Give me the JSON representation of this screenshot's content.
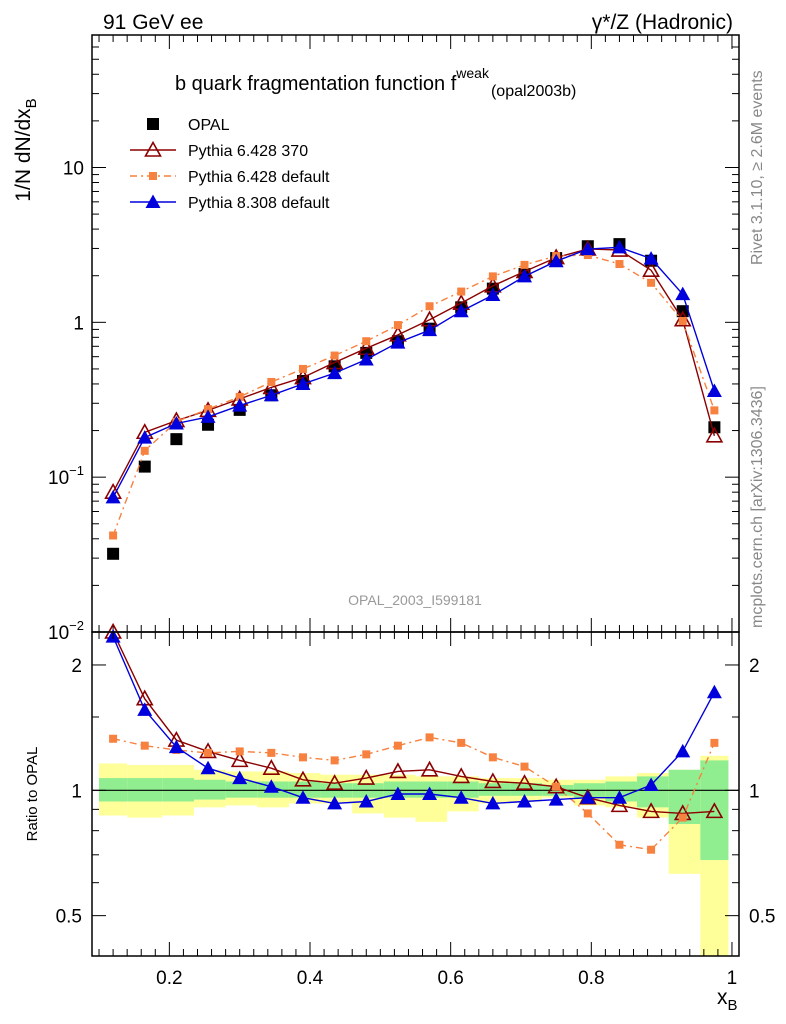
{
  "header": {
    "left": "91 GeV ee",
    "right": "γ*/Z (Hadronic)"
  },
  "side_labels": {
    "top": "Rivet 3.1.10, ≥ 2.6M events",
    "bottom": "mcplots.cern.ch [arXiv:1306.3436]"
  },
  "chart_data": [
    {
      "type": "line",
      "title_main": "b quark fragmentation function f",
      "title_sup": "weak",
      "title_sub": "(opal2003b)",
      "ylabel": "1/N dN/dx",
      "ylabel_sub": "B",
      "watermark": "OPAL_2003_I599181",
      "yscale": "log",
      "ylim": [
        0.01,
        60
      ],
      "xlim": [
        0.09,
        1.01
      ],
      "yticks": [
        {
          "v": 0.01,
          "base": "10",
          "exp": "−2"
        },
        {
          "v": 0.1,
          "base": "10",
          "exp": "−1"
        },
        {
          "v": 1,
          "base": "1",
          "exp": ""
        },
        {
          "v": 10,
          "base": "10",
          "exp": ""
        }
      ],
      "x": [
        0.12,
        0.165,
        0.21,
        0.255,
        0.3,
        0.345,
        0.39,
        0.435,
        0.48,
        0.525,
        0.57,
        0.615,
        0.66,
        0.705,
        0.75,
        0.795,
        0.84,
        0.885,
        0.93,
        0.975
      ],
      "legend": [
        {
          "name": "OPAL",
          "marker": "square",
          "color": "#000000",
          "line": "none"
        },
        {
          "name": "Pythia 6.428 370",
          "marker": "triangle-open",
          "color": "#8b0000",
          "line": "solid"
        },
        {
          "name": "Pythia 6.428 default",
          "marker": "square-small",
          "color": "#f7813f",
          "line": "dashdot"
        },
        {
          "name": "Pythia 8.308 default",
          "marker": "triangle",
          "color": "#0000dd",
          "line": "solid"
        }
      ],
      "series": [
        {
          "name": "OPAL",
          "values": [
            0.032,
            0.117,
            0.176,
            0.218,
            0.272,
            0.338,
            0.418,
            0.52,
            0.635,
            0.755,
            0.91,
            1.25,
            1.65,
            2.05,
            2.6,
            3.1,
            3.2,
            2.5,
            1.18,
            0.21
          ]
        },
        {
          "name": "Pythia 6.428 370",
          "values": [
            0.08,
            0.195,
            0.232,
            0.27,
            0.32,
            0.38,
            0.44,
            0.55,
            0.68,
            0.83,
            1.04,
            1.33,
            1.72,
            2.13,
            2.62,
            2.98,
            2.93,
            2.17,
            1.04,
            0.185
          ]
        },
        {
          "name": "Pythia 6.428 default",
          "values": [
            0.042,
            0.148,
            0.228,
            0.275,
            0.33,
            0.412,
            0.5,
            0.61,
            0.755,
            0.96,
            1.27,
            1.58,
            1.98,
            2.35,
            2.68,
            2.72,
            2.38,
            1.8,
            1.02,
            0.27
          ]
        },
        {
          "name": "Pythia 8.308 default",
          "values": [
            0.074,
            0.18,
            0.222,
            0.245,
            0.29,
            0.338,
            0.4,
            0.47,
            0.575,
            0.74,
            0.89,
            1.18,
            1.5,
            1.98,
            2.48,
            2.97,
            3.05,
            2.58,
            1.52,
            0.36
          ]
        }
      ]
    },
    {
      "type": "line",
      "ylabel": "Ratio to OPAL",
      "xlabel": "x",
      "xlabel_sub": "B",
      "yscale": "log",
      "ylim": [
        0.4,
        2.4
      ],
      "xlim": [
        0.09,
        1.01
      ],
      "yticks": [
        0.5,
        1,
        2
      ],
      "xticks": [
        "0.2",
        "0.4",
        "0.6",
        "0.8",
        "1"
      ],
      "xtick_values": [
        0.2,
        0.4,
        0.6,
        0.8,
        1.0
      ],
      "x": [
        0.12,
        0.165,
        0.21,
        0.255,
        0.3,
        0.345,
        0.39,
        0.435,
        0.48,
        0.525,
        0.57,
        0.615,
        0.66,
        0.705,
        0.75,
        0.795,
        0.84,
        0.885,
        0.93,
        0.975
      ],
      "bands": {
        "bin_edges": [
          0.1,
          0.14,
          0.19,
          0.235,
          0.28,
          0.325,
          0.37,
          0.415,
          0.46,
          0.505,
          0.55,
          0.595,
          0.64,
          0.685,
          0.73,
          0.775,
          0.82,
          0.865,
          0.91,
          0.955,
          0.995
        ],
        "inner_color": "#90ee90",
        "outer_color": "#ffff99",
        "inner_low": [
          0.94,
          0.94,
          0.94,
          0.95,
          0.96,
          0.96,
          0.96,
          0.96,
          0.96,
          0.96,
          0.96,
          0.96,
          0.97,
          0.97,
          0.97,
          0.96,
          0.94,
          0.91,
          0.83,
          0.68
        ],
        "inner_high": [
          1.07,
          1.07,
          1.07,
          1.06,
          1.05,
          1.05,
          1.05,
          1.04,
          1.04,
          1.05,
          1.05,
          1.05,
          1.04,
          1.04,
          1.03,
          1.04,
          1.05,
          1.08,
          1.12,
          1.18
        ],
        "outer_low": [
          0.87,
          0.86,
          0.87,
          0.91,
          0.92,
          0.91,
          0.93,
          0.93,
          0.88,
          0.86,
          0.84,
          0.89,
          0.93,
          0.94,
          0.96,
          0.92,
          0.91,
          0.86,
          0.63,
          0.36
        ],
        "outer_high": [
          1.16,
          1.15,
          1.15,
          1.12,
          1.11,
          1.11,
          1.1,
          1.09,
          1.09,
          1.09,
          1.08,
          1.08,
          1.07,
          1.07,
          1.06,
          1.06,
          1.08,
          1.1,
          1.12,
          1.21
        ]
      },
      "series": [
        {
          "name": "Pythia 6.428 370",
          "values": [
            2.55,
            1.66,
            1.32,
            1.24,
            1.18,
            1.13,
            1.06,
            1.04,
            1.07,
            1.11,
            1.12,
            1.08,
            1.05,
            1.04,
            1.02,
            0.96,
            0.92,
            0.89,
            0.88,
            0.89
          ]
        },
        {
          "name": "Pythia 6.428 default",
          "values": [
            1.33,
            1.28,
            1.25,
            1.23,
            1.24,
            1.23,
            1.2,
            1.18,
            1.22,
            1.28,
            1.34,
            1.3,
            1.2,
            1.14,
            1.02,
            0.88,
            0.74,
            0.72,
            0.86,
            1.3
          ]
        },
        {
          "name": "Pythia 8.308 default",
          "values": [
            2.34,
            1.56,
            1.27,
            1.13,
            1.07,
            1.02,
            0.96,
            0.93,
            0.94,
            0.98,
            0.98,
            0.96,
            0.93,
            0.94,
            0.95,
            0.96,
            0.96,
            1.03,
            1.24,
            1.72
          ]
        }
      ]
    }
  ]
}
